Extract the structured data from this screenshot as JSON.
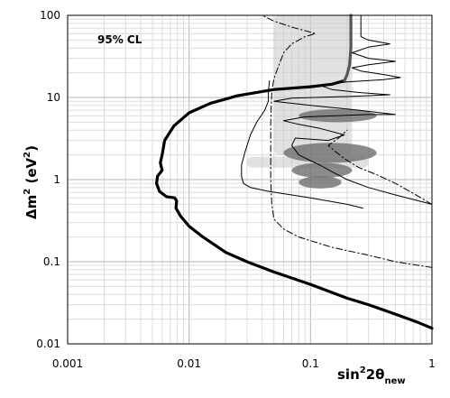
{
  "chart_data": {
    "type": "line",
    "title": "",
    "annotation": "95% CL",
    "xlabel": {
      "main": "sin",
      "sup": "2",
      "mid": "2θ",
      "sub": "new"
    },
    "ylabel": {
      "main": "Δm",
      "sup1": "2",
      "mid": " (eV",
      "sup2": "2",
      "end": ")"
    },
    "x_scale": "log",
    "y_scale": "log",
    "xlim": [
      0.001,
      1
    ],
    "ylim": [
      0.01,
      100
    ],
    "grid": true,
    "x_tick_labels": [
      "0.001",
      "0.01",
      "0.1",
      "1"
    ],
    "y_tick_labels": [
      "0.01",
      "0.1",
      "1",
      "10",
      "100"
    ],
    "series": [
      {
        "style": "thick-black",
        "points": [
          [
            1.0,
            0.0155
          ],
          [
            0.75,
            0.0185
          ],
          [
            0.5,
            0.023
          ],
          [
            0.3,
            0.03
          ],
          [
            0.2,
            0.036
          ],
          [
            0.1,
            0.053
          ],
          [
            0.05,
            0.075
          ],
          [
            0.03,
            0.1
          ],
          [
            0.02,
            0.13
          ],
          [
            0.013,
            0.2
          ],
          [
            0.01,
            0.27
          ],
          [
            0.0085,
            0.36
          ],
          [
            0.0078,
            0.45
          ],
          [
            0.0079,
            0.55
          ],
          [
            0.0076,
            0.6
          ],
          [
            0.0065,
            0.62
          ],
          [
            0.0057,
            0.72
          ],
          [
            0.0054,
            0.9
          ],
          [
            0.0055,
            1.1
          ],
          [
            0.006,
            1.3
          ],
          [
            0.0058,
            1.6
          ],
          [
            0.006,
            2.0
          ],
          [
            0.0063,
            3.0
          ],
          [
            0.0075,
            4.5
          ],
          [
            0.01,
            6.5
          ],
          [
            0.015,
            8.5
          ],
          [
            0.025,
            10.5
          ],
          [
            0.05,
            12.5
          ],
          [
            0.1,
            13.5
          ],
          [
            0.15,
            14.5
          ],
          [
            0.19,
            16.0
          ]
        ]
      },
      {
        "style": "thick-gray",
        "points": [
          [
            0.19,
            16.0
          ],
          [
            0.2,
            19.0
          ],
          [
            0.21,
            25.0
          ],
          [
            0.215,
            40.0
          ],
          [
            0.215,
            100.0
          ]
        ]
      },
      {
        "style": "thin-black",
        "points": [
          [
            1.0,
            0.5
          ],
          [
            0.5,
            0.65
          ],
          [
            0.3,
            0.8
          ],
          [
            0.2,
            1.0
          ],
          [
            0.15,
            1.25
          ],
          [
            0.12,
            1.5
          ],
          [
            0.1,
            1.7
          ],
          [
            0.08,
            2.0
          ],
          [
            0.07,
            2.6
          ],
          [
            0.075,
            3.2
          ],
          [
            0.14,
            3.0
          ],
          [
            0.19,
            3.5
          ],
          [
            0.12,
            4.2
          ],
          [
            0.08,
            4.7
          ],
          [
            0.06,
            5.2
          ],
          [
            0.09,
            5.8
          ],
          [
            0.3,
            6.2
          ],
          [
            0.5,
            6.2
          ],
          [
            0.25,
            7.0
          ],
          [
            0.1,
            8.0
          ],
          [
            0.05,
            9.0
          ],
          [
            0.07,
            9.8
          ],
          [
            0.22,
            10.3
          ],
          [
            0.45,
            10.8
          ],
          [
            0.25,
            11.5
          ],
          [
            0.15,
            12.5
          ],
          [
            0.12,
            14.0
          ],
          [
            0.2,
            15.5
          ],
          [
            0.4,
            16.5
          ],
          [
            0.55,
            17.5
          ],
          [
            0.4,
            19.0
          ],
          [
            0.26,
            21.0
          ],
          [
            0.22,
            23.0
          ],
          [
            0.3,
            25.0
          ],
          [
            0.5,
            27.5
          ],
          [
            0.3,
            30.0
          ],
          [
            0.22,
            35.0
          ],
          [
            0.3,
            41.0
          ],
          [
            0.45,
            45.0
          ],
          [
            0.3,
            50.0
          ],
          [
            0.26,
            55.0
          ],
          [
            0.26,
            100.0
          ]
        ]
      },
      {
        "style": "thin-black",
        "points": [
          [
            0.27,
            0.45
          ],
          [
            0.2,
            0.5
          ],
          [
            0.1,
            0.6
          ],
          [
            0.07,
            0.65
          ],
          [
            0.045,
            0.72
          ],
          [
            0.032,
            0.8
          ],
          [
            0.028,
            0.9
          ],
          [
            0.027,
            1.1
          ],
          [
            0.027,
            1.5
          ],
          [
            0.029,
            2.2
          ],
          [
            0.032,
            3.5
          ],
          [
            0.036,
            5.0
          ],
          [
            0.042,
            7.0
          ],
          [
            0.045,
            9.0
          ],
          [
            0.045,
            12.0
          ],
          [
            0.046,
            16.0
          ]
        ]
      },
      {
        "style": "dashdot",
        "points": [
          [
            1.0,
            0.085
          ],
          [
            0.5,
            0.1
          ],
          [
            0.3,
            0.12
          ],
          [
            0.15,
            0.15
          ],
          [
            0.08,
            0.2
          ],
          [
            0.06,
            0.25
          ],
          [
            0.05,
            0.33
          ],
          [
            0.048,
            0.5
          ],
          [
            0.047,
            1.0
          ],
          [
            0.047,
            2.0
          ],
          [
            0.047,
            5.0
          ],
          [
            0.048,
            12.0
          ],
          [
            0.05,
            17.0
          ],
          [
            0.055,
            25.0
          ],
          [
            0.06,
            35.0
          ],
          [
            0.07,
            45.0
          ],
          [
            0.09,
            55.0
          ],
          [
            0.11,
            60.0
          ],
          [
            0.09,
            65.0
          ],
          [
            0.07,
            72.0
          ],
          [
            0.05,
            85.0
          ],
          [
            0.04,
            100.0
          ]
        ]
      },
      {
        "style": "dashdot",
        "points": [
          [
            1.0,
            0.5
          ],
          [
            0.7,
            0.68
          ],
          [
            0.5,
            0.9
          ],
          [
            0.35,
            1.15
          ],
          [
            0.25,
            1.4
          ],
          [
            0.19,
            1.8
          ],
          [
            0.16,
            2.2
          ],
          [
            0.14,
            2.6
          ],
          [
            0.17,
            3.2
          ],
          [
            0.2,
            4.0
          ]
        ]
      }
    ],
    "regions": [
      {
        "style": "light-gray-band",
        "x": [
          0.05,
          0.22
        ],
        "y": [
          2.0,
          100.0
        ]
      },
      {
        "style": "light-gray-band",
        "x": [
          0.03,
          0.3
        ],
        "y": [
          1.4,
          1.9
        ]
      },
      {
        "style": "dark-gray-blob",
        "x": [
          0.08,
          0.35
        ],
        "y": [
          5.0,
          7.2
        ]
      },
      {
        "style": "dark-gray-blob",
        "x": [
          0.06,
          0.35
        ],
        "y": [
          1.6,
          2.8
        ]
      },
      {
        "style": "dark-gray-blob",
        "x": [
          0.07,
          0.22
        ],
        "y": [
          1.05,
          1.6
        ]
      },
      {
        "style": "dark-gray-blob",
        "x": [
          0.08,
          0.18
        ],
        "y": [
          0.78,
          1.1
        ]
      }
    ]
  }
}
